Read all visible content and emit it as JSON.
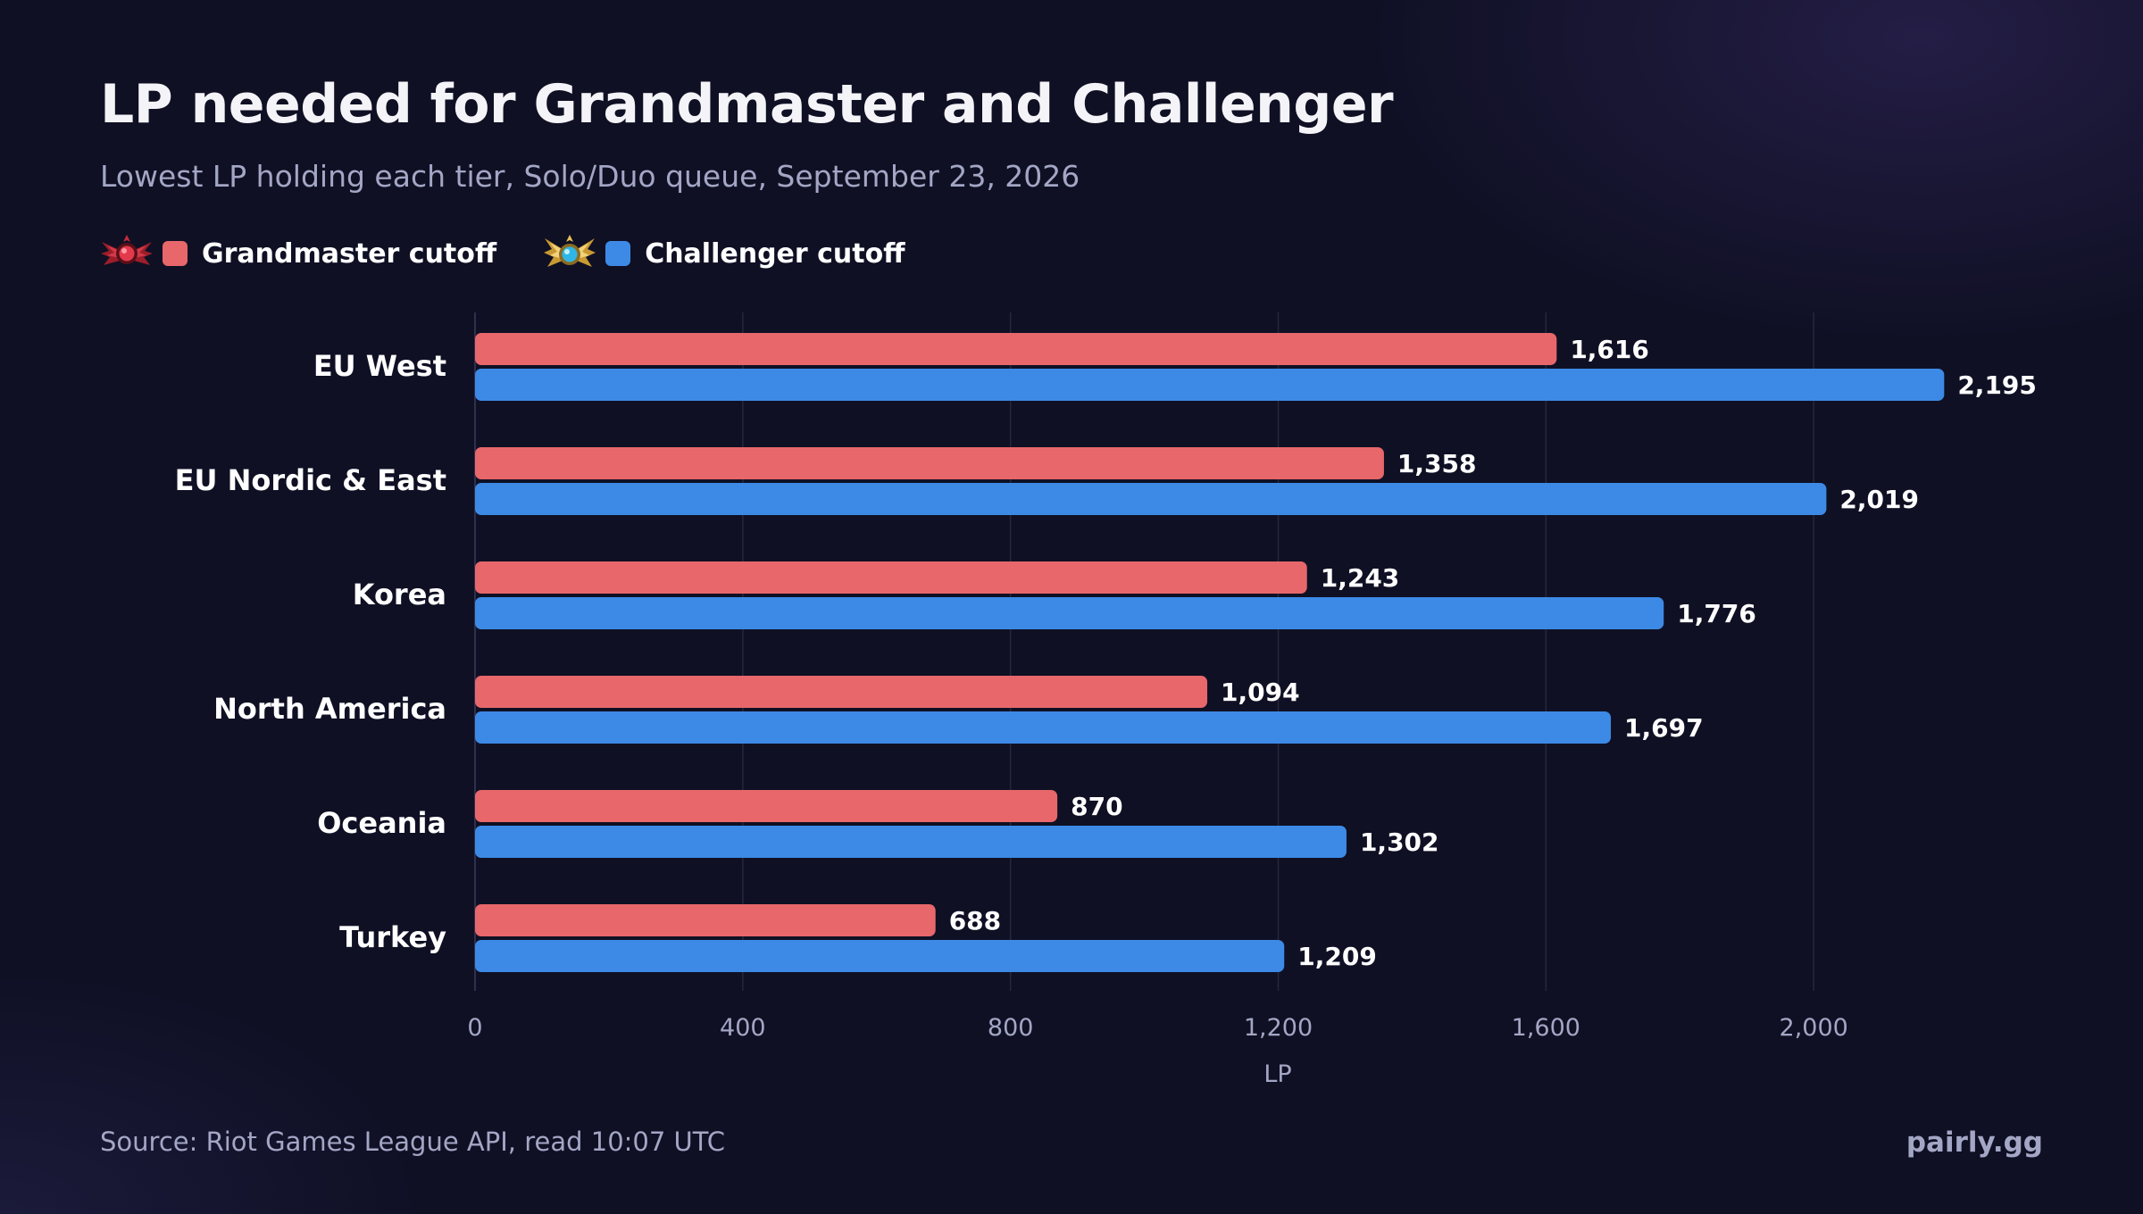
{
  "chart_data": {
    "type": "bar",
    "orientation": "horizontal",
    "title": "LP needed for Grandmaster and Challenger",
    "subtitle": "Lowest LP holding each tier, Solo/Duo queue, September 23, 2026",
    "categories": [
      "EU West",
      "EU Nordic & East",
      "Korea",
      "North America",
      "Oceania",
      "Turkey"
    ],
    "series": [
      {
        "name": "Grandmaster cutoff",
        "color": "#e8676a",
        "icon": "grandmaster-emblem-icon",
        "values": [
          1616,
          1358,
          1243,
          1094,
          870,
          688
        ],
        "labels": [
          "1,616",
          "1,358",
          "1,243",
          "1,094",
          "870",
          "688"
        ]
      },
      {
        "name": "Challenger cutoff",
        "color": "#3d8ae6",
        "icon": "challenger-emblem-icon",
        "values": [
          2195,
          2019,
          1776,
          1697,
          1302,
          1209
        ],
        "labels": [
          "2,195",
          "2,019",
          "1,776",
          "1,697",
          "1,302",
          "1,209"
        ]
      }
    ],
    "xlabel": "LP",
    "xlim": [
      0,
      2400
    ],
    "xticks": [
      0,
      400,
      800,
      1200,
      1600,
      2000
    ],
    "xtick_labels": [
      "0",
      "400",
      "800",
      "1,200",
      "1,600",
      "2,000"
    ],
    "grid": "vertical",
    "legend_position": "top-left"
  },
  "footer": {
    "source": "Source: Riot Games League API, read 10:07 UTC",
    "brand": "pairly.gg"
  }
}
